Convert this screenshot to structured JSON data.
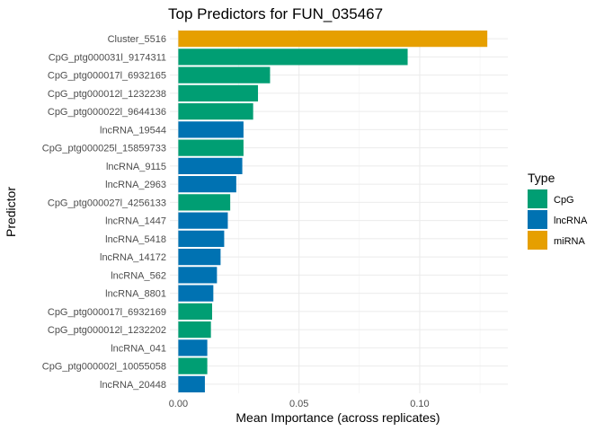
{
  "chart_data": {
    "type": "bar",
    "orientation": "horizontal",
    "title": "Top Predictors for FUN_035467",
    "xlabel": "Mean Importance (across replicates)",
    "ylabel": "Predictor",
    "xlim": [
      -0.0035,
      0.1365
    ],
    "x_ticks": [
      0.0,
      0.05,
      0.1
    ],
    "x_tick_labels": [
      "0.00",
      "0.05",
      "0.10"
    ],
    "grid": true,
    "legend": {
      "title": "Type",
      "position": "right",
      "entries": [
        {
          "name": "CpG",
          "color": "#009E73"
        },
        {
          "name": "lncRNA",
          "color": "#0072B2"
        },
        {
          "name": "miRNA",
          "color": "#E69F00"
        }
      ]
    },
    "categories": [
      "Cluster_5516",
      "CpG_ptg000031l_9174311",
      "CpG_ptg000017l_6932165",
      "CpG_ptg000012l_1232238",
      "CpG_ptg000022l_9644136",
      "lncRNA_19544",
      "CpG_ptg000025l_15859733",
      "lncRNA_9115",
      "lncRNA_2963",
      "CpG_ptg000027l_4256133",
      "lncRNA_1447",
      "lncRNA_5418",
      "lncRNA_14172",
      "lncRNA_562",
      "lncRNA_8801",
      "CpG_ptg000017l_6932169",
      "CpG_ptg000012l_1232202",
      "lncRNA_041",
      "CpG_ptg000002l_10055058",
      "lncRNA_20448"
    ],
    "types": [
      "miRNA",
      "CpG",
      "CpG",
      "CpG",
      "CpG",
      "lncRNA",
      "CpG",
      "lncRNA",
      "lncRNA",
      "CpG",
      "lncRNA",
      "lncRNA",
      "lncRNA",
      "lncRNA",
      "lncRNA",
      "CpG",
      "CpG",
      "lncRNA",
      "CpG",
      "lncRNA"
    ],
    "values": [
      0.128,
      0.095,
      0.038,
      0.033,
      0.031,
      0.027,
      0.027,
      0.0265,
      0.024,
      0.0215,
      0.0205,
      0.019,
      0.0175,
      0.016,
      0.0145,
      0.014,
      0.0135,
      0.012,
      0.012,
      0.011
    ]
  }
}
